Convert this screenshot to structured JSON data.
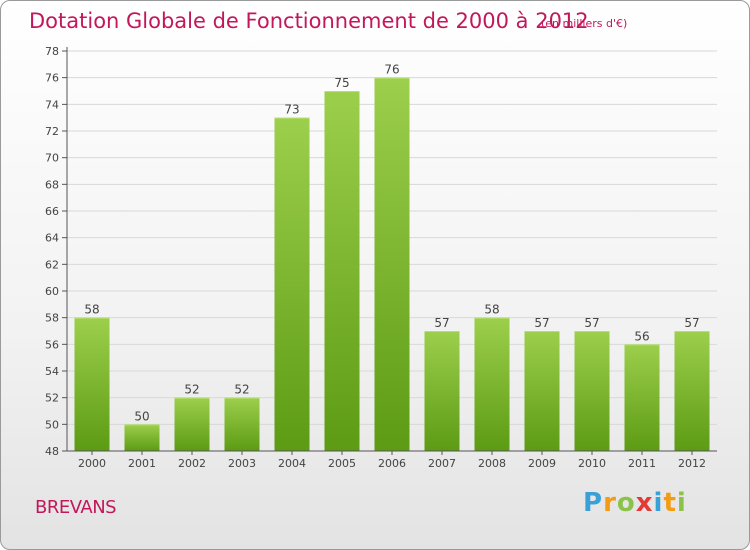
{
  "header": {
    "title": "Dotation Globale de Fonctionnement de 2000 à 2012",
    "unit": "(en milliers d'€)"
  },
  "footer": {
    "commune": "BREVANS",
    "logo": {
      "letters": [
        "P",
        "r",
        "o",
        "x",
        "i",
        "t",
        "i"
      ],
      "colors": [
        "#3aa0d8",
        "#f39c12",
        "#8bc34a",
        "#e53935",
        "#3aa0d8",
        "#f39c12",
        "#8bc34a"
      ]
    }
  },
  "colors": {
    "bar_light": "#9ccf4c",
    "bar_dark": "#5d9b14",
    "axis": "#555555",
    "grid": "#d8d8d8",
    "title": "#c2185b"
  },
  "chart_data": {
    "type": "bar",
    "title": "Dotation Globale de Fonctionnement de 2000 à 2012",
    "xlabel": "",
    "ylabel": "",
    "ylim": [
      48,
      78
    ],
    "ytick_step": 2,
    "grid": true,
    "legend": "none",
    "categories": [
      "2000",
      "2001",
      "2002",
      "2003",
      "2004",
      "2005",
      "2006",
      "2007",
      "2008",
      "2009",
      "2010",
      "2011",
      "2012"
    ],
    "values": [
      58,
      50,
      52,
      52,
      73,
      75,
      76,
      57,
      58,
      57,
      57,
      56,
      57
    ]
  }
}
